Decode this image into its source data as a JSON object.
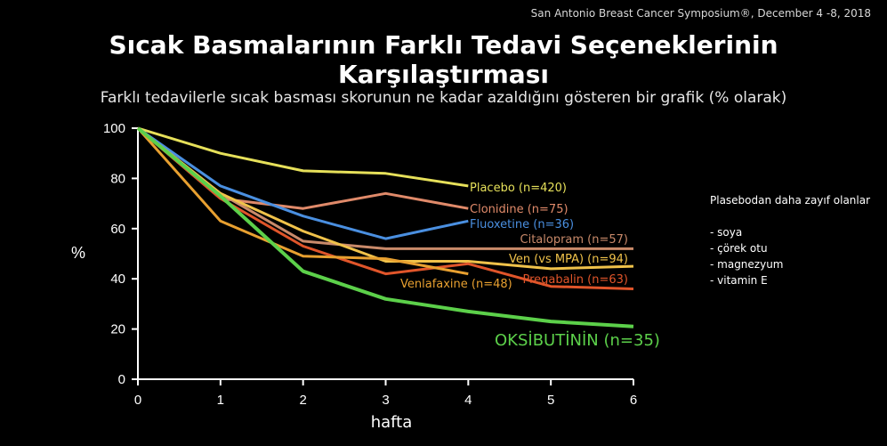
{
  "source": "San Antonio Breast Cancer Symposium®, December 4 -8, 2018",
  "title": "Sıcak Basmalarının Farklı Tedavi Seçeneklerinin Karşılaştırması",
  "subtitle": "Farklı tedavilerle sıcak basması skorunun ne kadar azaldığını gösteren bir grafik (% olarak)",
  "side_note": {
    "heading": "Plasebodan daha zayıf olanlar",
    "items": [
      "- soya",
      "- çörek otu",
      "- magnezyum",
      "- vitamin E"
    ]
  },
  "chart_data": {
    "type": "line",
    "xlabel": "hafta",
    "ylabel": "%",
    "xlim": [
      0,
      6
    ],
    "ylim": [
      0,
      100
    ],
    "xticks": [
      0,
      1,
      2,
      3,
      4,
      5,
      6
    ],
    "yticks": [
      0,
      20,
      40,
      60,
      80,
      100
    ],
    "grid": false,
    "series": [
      {
        "name": "Placebo (n=420)",
        "color": "#e6e05a",
        "x": [
          0,
          1,
          2,
          3,
          4
        ],
        "y": [
          100,
          90,
          83,
          82,
          77
        ]
      },
      {
        "name": "Clonidine (n=75)",
        "color": "#e08a6a",
        "x": [
          0,
          1,
          2,
          3,
          4
        ],
        "y": [
          100,
          72,
          68,
          74,
          68
        ]
      },
      {
        "name": "Fluoxetine (n=36)",
        "color": "#4a8fe0",
        "x": [
          0,
          1,
          2,
          3,
          4
        ],
        "y": [
          100,
          77,
          65,
          56,
          63
        ]
      },
      {
        "name": "Citalopram (n=57)",
        "color": "#c98a6a",
        "x": [
          0,
          1,
          2,
          3,
          4,
          5,
          6
        ],
        "y": [
          100,
          74,
          55,
          52,
          52,
          52,
          52
        ]
      },
      {
        "name": "Ven (vs MPA) (n=94)",
        "color": "#f0c24a",
        "x": [
          0,
          1,
          2,
          3,
          4,
          5,
          6
        ],
        "y": [
          100,
          74,
          59,
          47,
          47,
          44,
          45
        ]
      },
      {
        "name": "Pregabalin (n=63)",
        "color": "#e0552a",
        "x": [
          0,
          1,
          2,
          3,
          4,
          5,
          6
        ],
        "y": [
          100,
          72,
          53,
          42,
          46,
          37,
          36
        ]
      },
      {
        "name": "Venlafaxine (n=48)",
        "color": "#e8a030",
        "x": [
          0,
          1,
          2,
          3,
          4
        ],
        "y": [
          100,
          63,
          49,
          48,
          42
        ]
      },
      {
        "name": "OKSİBUTİNİN (n=35)",
        "color": "#5cd04a",
        "x": [
          0,
          1,
          2,
          3,
          4,
          5,
          6
        ],
        "y": [
          100,
          73,
          43,
          32,
          27,
          23,
          21
        ]
      }
    ]
  }
}
